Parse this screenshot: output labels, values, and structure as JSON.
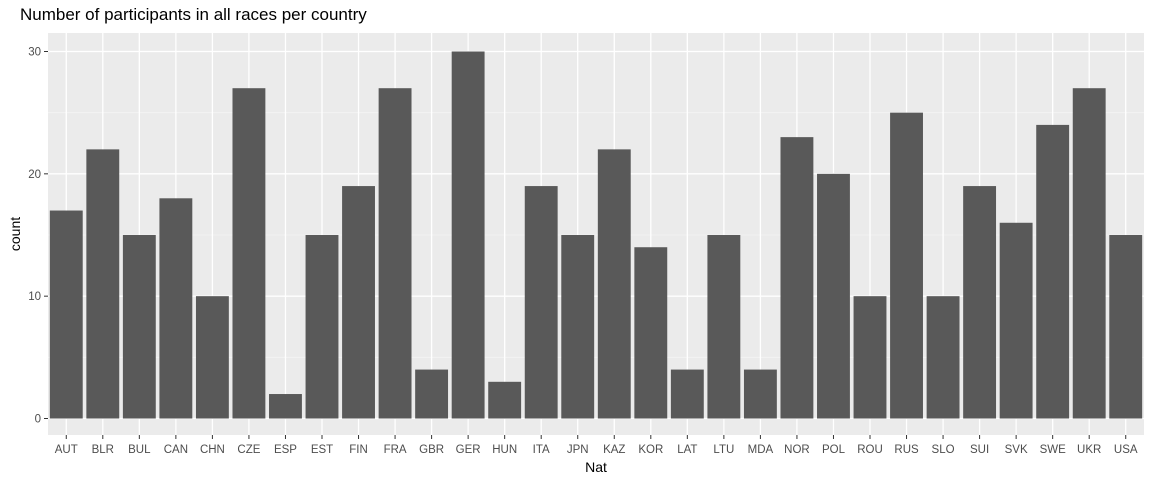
{
  "chart_data": {
    "type": "bar",
    "title": "Number of participants in all races per country",
    "xlabel": "Nat",
    "ylabel": "count",
    "categories": [
      "AUT",
      "BLR",
      "BUL",
      "CAN",
      "CHN",
      "CZE",
      "ESP",
      "EST",
      "FIN",
      "FRA",
      "GBR",
      "GER",
      "HUN",
      "ITA",
      "JPN",
      "KAZ",
      "KOR",
      "LAT",
      "LTU",
      "MDA",
      "NOR",
      "POL",
      "ROU",
      "RUS",
      "SLO",
      "SUI",
      "SVK",
      "SWE",
      "UKR",
      "USA"
    ],
    "values": [
      17,
      22,
      15,
      18,
      10,
      27,
      2,
      15,
      19,
      27,
      4,
      30,
      3,
      19,
      15,
      22,
      14,
      4,
      15,
      4,
      23,
      20,
      10,
      25,
      10,
      19,
      16,
      24,
      27,
      15
    ],
    "ylim": [
      0,
      31.5
    ],
    "yticks": [
      0,
      10,
      20,
      30
    ],
    "grid": true,
    "legend": "none",
    "colors": {
      "bar": "#595959",
      "panel": "#ebebeb",
      "grid_major": "#ffffff",
      "grid_minor": "#f5f5f5"
    }
  }
}
